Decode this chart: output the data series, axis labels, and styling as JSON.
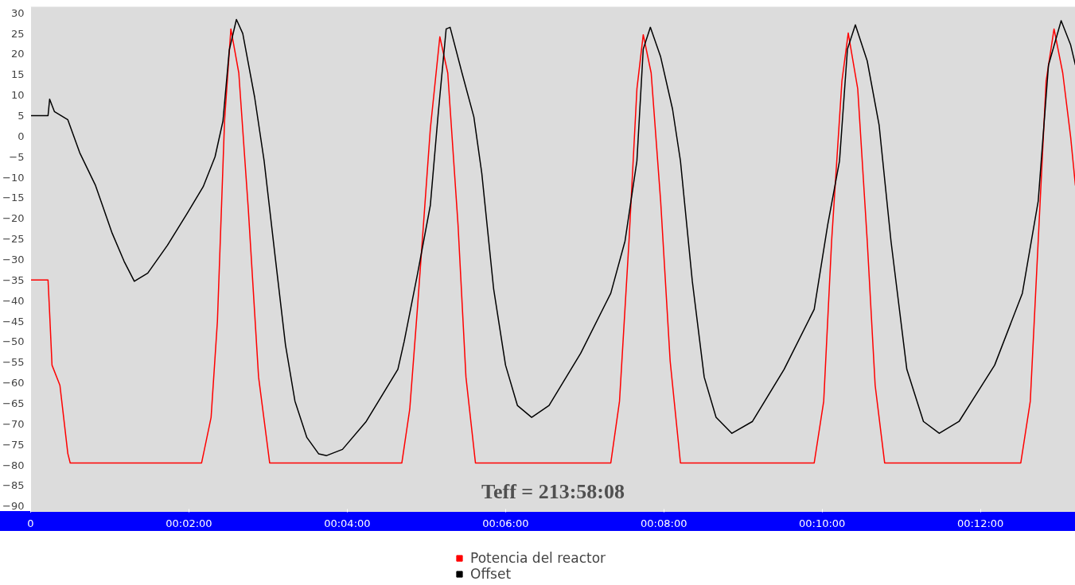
{
  "chart_data": {
    "type": "line",
    "annotations": [
      "Teff = 213:58:08"
    ],
    "xlim": [
      0,
      13.2
    ],
    "ylim": [
      -91.5,
      31.5
    ],
    "xticks": [
      {
        "value": 0,
        "label": "0"
      },
      {
        "value": 2,
        "label": "00:02:00"
      },
      {
        "value": 4,
        "label": "00:04:00"
      },
      {
        "value": 6,
        "label": "00:06:00"
      },
      {
        "value": 8,
        "label": "00:08:00"
      },
      {
        "value": 10,
        "label": "00:10:00"
      },
      {
        "value": 12,
        "label": "00:12:00"
      }
    ],
    "yticks": [
      30,
      25,
      20,
      15,
      10,
      5,
      0,
      -5,
      -10,
      -15,
      -20,
      -25,
      -30,
      -35,
      -40,
      -45,
      -50,
      -55,
      -60,
      -65,
      -70,
      -75,
      -80,
      -85,
      -90
    ],
    "grid": false,
    "legend": "bottom",
    "marker": "none",
    "line_style": "solid",
    "series": [
      {
        "name": "Potencia del reactor",
        "color": "#ff0000",
        "x": [
          0,
          0.22,
          0.24,
          0.27,
          0.37,
          0.47,
          0.5,
          2.16,
          2.28,
          2.36,
          2.45,
          2.53,
          2.63,
          2.75,
          2.88,
          3.02,
          4.69,
          4.79,
          4.89,
          5.05,
          5.17,
          5.27,
          5.4,
          5.5,
          5.62,
          7.33,
          7.44,
          7.56,
          7.66,
          7.74,
          7.84,
          7.96,
          8.08,
          8.21,
          9.9,
          10.02,
          10.12,
          10.25,
          10.33,
          10.45,
          10.57,
          10.67,
          10.79,
          12.51,
          12.63,
          12.73,
          12.83,
          12.93,
          13.04,
          13.14,
          13.2
        ],
        "values": [
          -35,
          -35,
          -43,
          -55.7,
          -60.6,
          -77.2,
          -79.5,
          -79.5,
          -68.4,
          -45,
          3.7,
          26.1,
          15.4,
          -17.7,
          -58.6,
          -79.5,
          -79.5,
          -66.4,
          -41.1,
          1.8,
          24.2,
          15.4,
          -21.6,
          -58.6,
          -79.5,
          -79.5,
          -64.5,
          -25.5,
          11.5,
          24.7,
          15.4,
          -15.8,
          -54.7,
          -79.5,
          -79.5,
          -64.5,
          -25.5,
          13.4,
          25.1,
          11.5,
          -25.5,
          -60.6,
          -79.5,
          -79.5,
          -64.5,
          -25.5,
          13.4,
          26.1,
          15.4,
          -0.2,
          -12
        ]
      },
      {
        "name": "Offset",
        "color": "#000000",
        "x": [
          0,
          0.22,
          0.24,
          0.3,
          0.47,
          0.62,
          0.82,
          1.03,
          1.18,
          1.31,
          1.48,
          1.73,
          1.98,
          2.18,
          2.33,
          2.43,
          2.51,
          2.6,
          2.68,
          2.83,
          2.95,
          3.09,
          3.22,
          3.34,
          3.49,
          3.64,
          3.74,
          3.94,
          4.24,
          4.64,
          4.72,
          4.89,
          5.05,
          5.15,
          5.25,
          5.3,
          5.45,
          5.6,
          5.7,
          5.85,
          6.0,
          6.15,
          6.33,
          6.55,
          6.95,
          7.33,
          7.51,
          7.66,
          7.74,
          7.83,
          7.96,
          8.11,
          8.21,
          8.36,
          8.51,
          8.66,
          8.86,
          9.12,
          9.52,
          9.9,
          10.07,
          10.22,
          10.32,
          10.42,
          10.57,
          10.72,
          10.87,
          11.07,
          11.28,
          11.48,
          11.73,
          12.18,
          12.53,
          12.73,
          12.86,
          13.02,
          13.14,
          13.2
        ],
        "values": [
          5,
          5,
          9,
          6,
          4,
          -4,
          -12,
          -23.6,
          -30.4,
          -35.3,
          -33.3,
          -26.5,
          -18.7,
          -12.3,
          -5,
          3.7,
          21,
          28.4,
          25,
          9.5,
          -6,
          -29.4,
          -50.8,
          -64.5,
          -73.3,
          -77.3,
          -77.7,
          -76.2,
          -69.4,
          -56.7,
          -49.9,
          -33.3,
          -16.8,
          5.6,
          26.1,
          26.5,
          15.4,
          4.7,
          -9,
          -37.2,
          -55.7,
          -65.5,
          -68.4,
          -65.5,
          -52.8,
          -38.2,
          -25.5,
          -6,
          21.2,
          26.5,
          19.3,
          6.6,
          -6,
          -35.3,
          -58.6,
          -68.4,
          -72.3,
          -69.4,
          -56.7,
          -42.1,
          -21.6,
          -6,
          21.2,
          27.1,
          18.3,
          2.7,
          -25.5,
          -56.7,
          -69.4,
          -72.3,
          -69.4,
          -55.7,
          -38.2,
          -15.8,
          17.3,
          28.1,
          22.2,
          17.3
        ]
      }
    ]
  }
}
